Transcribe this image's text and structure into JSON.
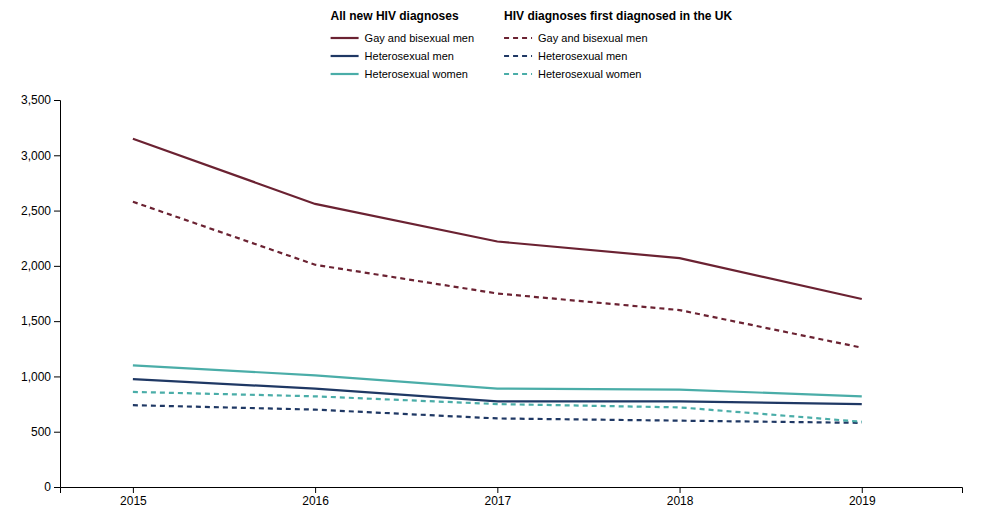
{
  "chart_data": {
    "type": "line",
    "x": [
      2015,
      2016,
      2017,
      2018,
      2019
    ],
    "xlim": [
      2014.6,
      2019.55
    ],
    "xticks": [
      2015,
      2016,
      2017,
      2018,
      2019
    ],
    "ylim": [
      0,
      3500
    ],
    "yticks": [
      0,
      500,
      {
        "value": 1000,
        "label": "1,000"
      },
      {
        "value": 1500,
        "label": "1,500"
      },
      {
        "value": 2000,
        "label": "2,000"
      },
      {
        "value": 2500,
        "label": "2,500"
      },
      {
        "value": 3000,
        "label": "3,000"
      },
      {
        "value": 3500,
        "label": "3,500"
      }
    ],
    "grid": false,
    "legend": "top",
    "annotations": [
      "All new HIV diagnoses",
      "HIV diagnoses first diagnosed in the UK"
    ],
    "series": [
      {
        "name": "Gay and bisexual men",
        "color": "#6B2232",
        "line_style": "solid",
        "values": [
          3150,
          2560,
          2220,
          2070,
          1700
        ]
      },
      {
        "name": "Heterosexual men",
        "color": "#1F3864",
        "line_style": "solid",
        "values": [
          975,
          890,
          775,
          775,
          750
        ]
      },
      {
        "name": "Heterosexual women",
        "color": "#4AADA8",
        "line_style": "solid",
        "values": [
          1100,
          1010,
          890,
          880,
          820
        ]
      },
      {
        "name": "Gay and bisexual men",
        "color": "#6B2232",
        "line_style": "dashed",
        "values": [
          2580,
          2010,
          1750,
          1600,
          1260
        ]
      },
      {
        "name": "Heterosexual men",
        "color": "#1F3864",
        "line_style": "dashed",
        "values": [
          740,
          700,
          620,
          600,
          580
        ]
      },
      {
        "name": "Heterosexual women",
        "color": "#4AADA8",
        "line_style": "dashed",
        "values": [
          860,
          820,
          750,
          720,
          590
        ]
      }
    ]
  }
}
